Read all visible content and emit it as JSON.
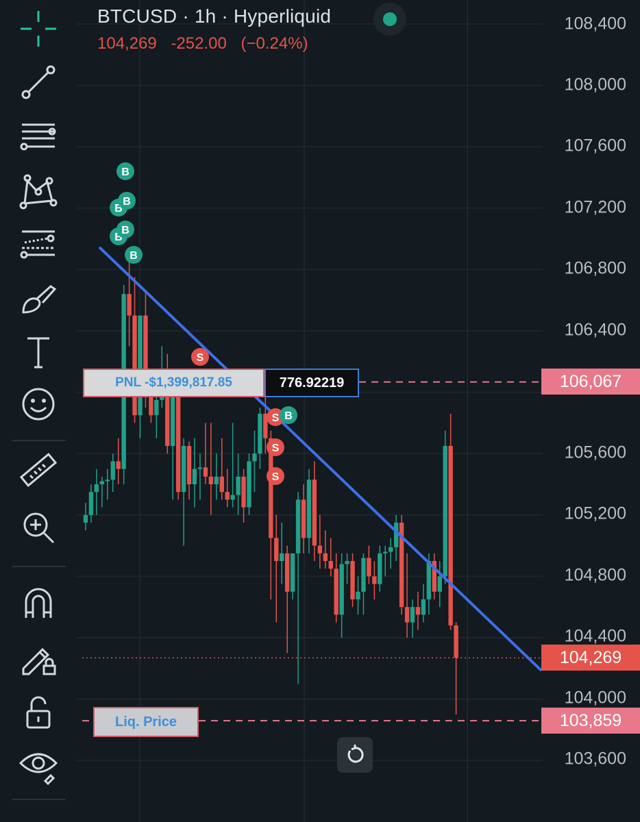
{
  "header": {
    "symbol": "BTCUSD",
    "interval": "1h",
    "exchange": "Hyperliquid",
    "last_price": "104,269",
    "change": "-252.00",
    "change_pct": "(−0.24%)"
  },
  "toolbar": {
    "tools": [
      "crosshair-icon",
      "trendline-icon",
      "fib-retracement-icon",
      "pattern-icon",
      "long-position-icon",
      "brush-icon",
      "text-icon",
      "emoji-icon",
      "ruler-icon",
      "zoom-in-icon",
      "magnet-icon",
      "lock-drawings-icon",
      "unlock-icon",
      "eye-icon"
    ]
  },
  "price_axis": {
    "labels": [
      "108,400",
      "108,000",
      "107,600",
      "107,200",
      "106,800",
      "106,400",
      "105,600",
      "105,200",
      "104,800",
      "104,400",
      "104,000",
      "103,600"
    ]
  },
  "price_tags": {
    "entry": "106,067",
    "current": "104,269",
    "liquidation": "103,859"
  },
  "position": {
    "pnl": "PNL -$1,399,817.85",
    "size": "776.92219",
    "liq_label": "Liq. Price"
  },
  "colors": {
    "up": "#22a08a",
    "down": "#e5534b",
    "trendline": "#3d6fe8",
    "background": "#131a20"
  },
  "chart_data": {
    "type": "candlestick",
    "symbol": "BTCUSD",
    "timeframe": "1h",
    "ylim": [
      103500,
      108500
    ],
    "candles": [
      [
        105150,
        105280,
        105100,
        105200
      ],
      [
        105200,
        105400,
        105150,
        105350
      ],
      [
        105350,
        105500,
        105200,
        105400
      ],
      [
        105400,
        105450,
        105250,
        105420
      ],
      [
        105420,
        105500,
        105300,
        105430
      ],
      [
        105430,
        105600,
        105350,
        105550
      ],
      [
        105550,
        105700,
        105400,
        105500
      ],
      [
        105500,
        106700,
        105400,
        106640
      ],
      [
        106640,
        106900,
        106300,
        106500
      ],
      [
        106500,
        106750,
        105800,
        105850
      ],
      [
        105850,
        106500,
        105700,
        106500
      ],
      [
        106500,
        106650,
        105900,
        106000
      ],
      [
        106000,
        106100,
        105800,
        105850
      ],
      [
        105850,
        106100,
        105700,
        105950
      ],
      [
        105950,
        106300,
        105900,
        106150
      ],
      [
        106150,
        106250,
        105600,
        105650
      ],
      [
        105650,
        106150,
        105300,
        106100
      ],
      [
        106100,
        106150,
        105300,
        105350
      ],
      [
        105350,
        105700,
        105000,
        105650
      ],
      [
        105650,
        105680,
        105300,
        105400
      ],
      [
        105400,
        105700,
        105250,
        105500
      ],
      [
        105500,
        105600,
        105300,
        105510
      ],
      [
        105510,
        105800,
        105400,
        105450
      ],
      [
        105450,
        105800,
        105200,
        105400
      ],
      [
        105400,
        105600,
        105300,
        105450
      ],
      [
        105450,
        105700,
        105300,
        105350
      ],
      [
        105350,
        105500,
        105250,
        105300
      ],
      [
        105300,
        105800,
        105250,
        105330
      ],
      [
        105330,
        105600,
        105200,
        105450
      ],
      [
        105450,
        105500,
        105150,
        105250
      ],
      [
        105250,
        105600,
        105200,
        105550
      ],
      [
        105550,
        105750,
        105350,
        105600
      ],
      [
        105600,
        105900,
        105500,
        105860
      ],
      [
        105860,
        106000,
        105600,
        105700
      ],
      [
        105700,
        105750,
        104650,
        105050
      ],
      [
        105050,
        105200,
        104500,
        104900
      ],
      [
        104900,
        105150,
        104750,
        104950
      ],
      [
        104950,
        105000,
        104300,
        104700
      ],
      [
        104700,
        104950,
        104650,
        104950
      ],
      [
        104950,
        105350,
        104100,
        105300
      ],
      [
        105300,
        105400,
        104950,
        105050
      ],
      [
        105050,
        105500,
        104950,
        105430
      ],
      [
        105430,
        105550,
        104900,
        105000
      ],
      [
        105000,
        105200,
        104850,
        104950
      ],
      [
        104950,
        105100,
        104850,
        104900
      ],
      [
        104900,
        105050,
        104800,
        104850
      ],
      [
        104850,
        104950,
        104500,
        104550
      ],
      [
        104550,
        104950,
        104400,
        104880
      ],
      [
        104880,
        104950,
        104750,
        104900
      ],
      [
        104900,
        104950,
        104600,
        104650
      ],
      [
        104650,
        104800,
        104550,
        104700
      ],
      [
        104700,
        104950,
        104550,
        104920
      ],
      [
        104920,
        105000,
        104750,
        104800
      ],
      [
        104800,
        104900,
        104650,
        104750
      ],
      [
        104750,
        105000,
        104700,
        104950
      ],
      [
        104950,
        105000,
        104800,
        104960
      ],
      [
        104960,
        105050,
        104850,
        104990
      ],
      [
        104990,
        105200,
        104900,
        105150
      ],
      [
        105150,
        105200,
        104550,
        104600
      ],
      [
        104600,
        104950,
        104400,
        104500
      ],
      [
        104500,
        104650,
        104400,
        104600
      ],
      [
        104600,
        104700,
        104450,
        104550
      ],
      [
        104550,
        104750,
        104500,
        104650
      ],
      [
        104650,
        104950,
        104550,
        104900
      ],
      [
        104900,
        104950,
        104650,
        104700
      ],
      [
        104700,
        104900,
        104600,
        104800
      ],
      [
        104800,
        105750,
        104750,
        105650
      ],
      [
        105650,
        105860,
        104450,
        104480
      ],
      [
        104480,
        104500,
        103900,
        104269
      ]
    ],
    "trendline": {
      "from": [
        0,
        106820
      ],
      "to": [
        74,
        104240
      ]
    },
    "buy_markers": 6,
    "sell_markers": 5,
    "horizontal_levels": {
      "entry": 106067,
      "current": 104269,
      "liquidation": 103859
    }
  }
}
